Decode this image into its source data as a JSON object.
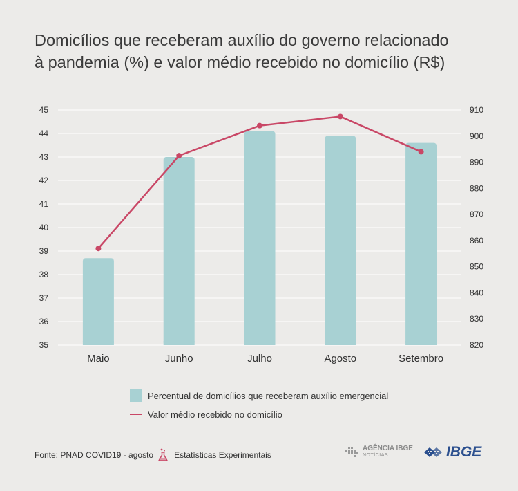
{
  "title_lines": [
    "Domicílios que receberam auxílio do governo relacionado",
    "à pandemia (%) e valor médio recebido no domicílio (R$)"
  ],
  "chart_data": {
    "type": "bar",
    "categories": [
      "Maio",
      "Junho",
      "Julho",
      "Agosto",
      "Setembro"
    ],
    "series": [
      {
        "name": "Percentual de domicílios que receberam auxílio emergencial",
        "type": "bar",
        "axis": "left",
        "values": [
          38.7,
          43.0,
          44.1,
          43.9,
          43.6
        ],
        "color": "#a8d1d3"
      },
      {
        "name": "Valor médio recebido no domicílio",
        "type": "line",
        "axis": "right",
        "values": [
          857,
          892.5,
          904,
          907.5,
          894
        ],
        "color": "#c94766"
      }
    ],
    "y_left": {
      "min": 35,
      "max": 45,
      "ticks": [
        35,
        36,
        37,
        38,
        39,
        40,
        41,
        42,
        43,
        44,
        45
      ]
    },
    "y_right": {
      "min": 820,
      "max": 910,
      "ticks": [
        820,
        830,
        840,
        850,
        860,
        870,
        880,
        890,
        900,
        910
      ]
    },
    "grid": true,
    "legend_position": "bottom"
  },
  "footer": {
    "source": "Fonte: PNAD COVID19 - agosto",
    "experimental": "Estatísticas Experimentais"
  },
  "logos": {
    "agencia_line1": "AGÊNCIA IBGE",
    "agencia_line2": "NOTÍCIAS",
    "ibge": "IBGE"
  },
  "colors": {
    "bar": "#a8d1d3",
    "line": "#c94766",
    "grid": "#ffffff",
    "background": "#ecebe9"
  }
}
